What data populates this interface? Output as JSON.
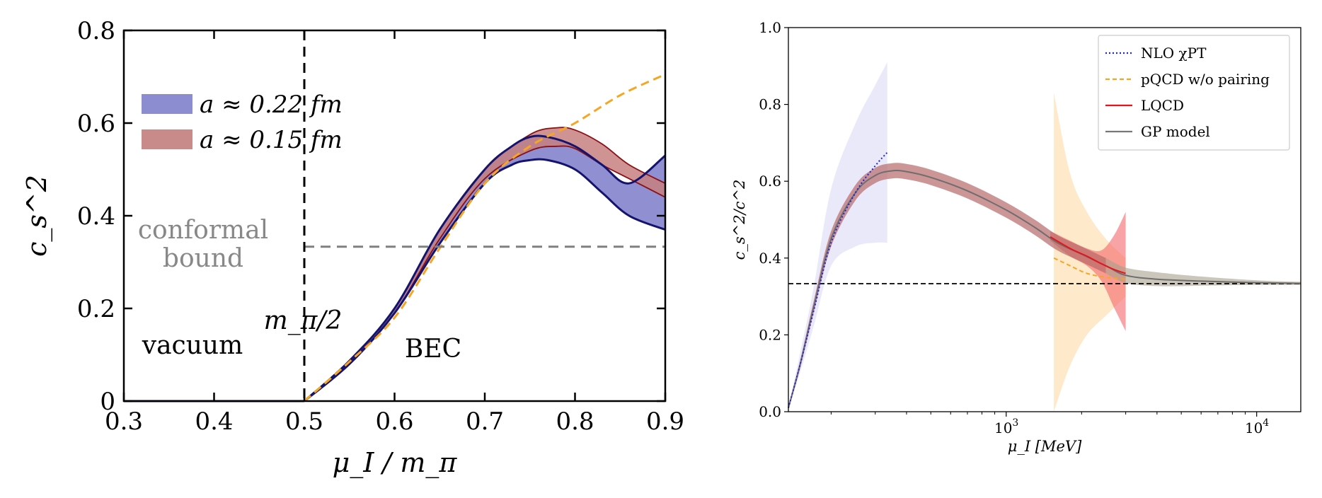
{
  "chart_data": [
    {
      "type": "line",
      "title": "",
      "xlabel": "μ_I / m_π",
      "ylabel": "c_s^2",
      "xlim": [
        0.3,
        0.9
      ],
      "ylim": [
        0,
        0.8
      ],
      "xticks": [
        0.3,
        0.4,
        0.5,
        0.6,
        0.7,
        0.8,
        0.9
      ],
      "yticks": [
        0,
        0.2,
        0.4,
        0.6,
        0.8
      ],
      "xtick_labels": [
        "0.3",
        "0.4",
        "0.5",
        "0.6",
        "0.7",
        "0.8",
        "0.9"
      ],
      "ytick_labels": [
        "0",
        "0.2",
        "0.4",
        "0.6",
        "0.8"
      ],
      "legend": [
        {
          "label": "a ≈ 0.22 fm",
          "color": "#8c8cd0"
        },
        {
          "label": "a ≈ 0.15 fm",
          "color": "#c98a8a"
        }
      ],
      "annotations": {
        "vacuum": "vacuum",
        "bec": "BEC",
        "mpi_half": "m_π/2",
        "conformal_line1": "conformal",
        "conformal_line2": "bound"
      },
      "conformal_bound": 0.3333,
      "vline_x": 0.5,
      "series": [
        {
          "name": "vacuum",
          "color": "#1a1a6e",
          "x": [
            0.3,
            0.5
          ],
          "y": [
            0,
            0
          ]
        },
        {
          "name": "pQCD (dashed orange)",
          "color": "#f5a623",
          "x": [
            0.5,
            0.55,
            0.6,
            0.65,
            0.7,
            0.75,
            0.8,
            0.85,
            0.9
          ],
          "y": [
            0.0,
            0.085,
            0.18,
            0.33,
            0.47,
            0.55,
            0.6,
            0.66,
            0.705
          ]
        },
        {
          "name": "a ≈ 0.22 fm band",
          "x": [
            0.5,
            0.55,
            0.6,
            0.65,
            0.7,
            0.73,
            0.75,
            0.77,
            0.8,
            0.83,
            0.86,
            0.9
          ],
          "upper": [
            0.0,
            0.087,
            0.2,
            0.37,
            0.5,
            0.55,
            0.57,
            0.57,
            0.55,
            0.51,
            0.47,
            0.53
          ],
          "lower": [
            0.0,
            0.08,
            0.19,
            0.34,
            0.47,
            0.51,
            0.52,
            0.52,
            0.5,
            0.45,
            0.4,
            0.37
          ]
        },
        {
          "name": "a ≈ 0.15 fm band",
          "x": [
            0.5,
            0.55,
            0.6,
            0.65,
            0.7,
            0.75,
            0.78,
            0.8,
            0.83,
            0.86,
            0.9
          ],
          "upper": [
            0.0,
            0.088,
            0.2,
            0.37,
            0.5,
            0.575,
            0.59,
            0.585,
            0.555,
            0.51,
            0.47
          ],
          "lower": [
            0.0,
            0.083,
            0.19,
            0.35,
            0.48,
            0.54,
            0.55,
            0.545,
            0.51,
            0.48,
            0.44
          ]
        }
      ]
    },
    {
      "type": "line",
      "title": "",
      "xlabel": "μ_I [MeV]",
      "ylabel": "c_s^2/c^2",
      "xscale": "log",
      "xlim": [
        135,
        15000
      ],
      "ylim": [
        0.0,
        1.0
      ],
      "xticks": [
        1000,
        10000
      ],
      "xtick_labels": [
        "10",
        "10"
      ],
      "xtick_exponents": [
        "3",
        "4"
      ],
      "yticks": [
        0.0,
        0.2,
        0.4,
        0.6,
        0.8,
        1.0
      ],
      "ytick_labels": [
        "0.0",
        "0.2",
        "0.4",
        "0.6",
        "0.8",
        "1.0"
      ],
      "legend_position": "top-right",
      "legend": [
        {
          "label": "NLO χPT",
          "color": "#1f24d6",
          "style": "dotted"
        },
        {
          "label": "pQCD w/o pairing",
          "color": "#f5a623",
          "style": "dashed"
        },
        {
          "label": "LQCD",
          "color": "#e8141a",
          "style": "solid"
        },
        {
          "label": "GP model",
          "color": "#777777",
          "style": "solid"
        }
      ],
      "conformal_bound": 0.3333,
      "series": [
        {
          "name": "GP model",
          "x": [
            135,
            150,
            170,
            200,
            250,
            300,
            350,
            400,
            500,
            700,
            1000,
            1300,
            1600,
            2000,
            2500,
            3000,
            4000,
            6000,
            10000,
            15000
          ],
          "y": [
            0.01,
            0.12,
            0.27,
            0.45,
            0.57,
            0.615,
            0.627,
            0.625,
            0.61,
            0.575,
            0.525,
            0.48,
            0.44,
            0.41,
            0.38,
            0.355,
            0.345,
            0.34,
            0.336,
            0.334
          ],
          "band": [
            0.005,
            0.01,
            0.015,
            0.02,
            0.02,
            0.02,
            0.02,
            0.02,
            0.02,
            0.02,
            0.02,
            0.02,
            0.02,
            0.02,
            0.02,
            0.02,
            0.018,
            0.012,
            0.006,
            0.004
          ]
        },
        {
          "name": "NLO χPT",
          "x": [
            135,
            150,
            170,
            200,
            250,
            300,
            335
          ],
          "y": [
            0.01,
            0.12,
            0.26,
            0.44,
            0.57,
            0.64,
            0.675
          ],
          "band_upper": [
            0.01,
            0.15,
            0.32,
            0.58,
            0.75,
            0.85,
            0.91
          ],
          "band_lower": [
            0.01,
            0.1,
            0.22,
            0.38,
            0.43,
            0.44,
            0.44
          ]
        },
        {
          "name": "pQCD w/o pairing",
          "x": [
            1550,
            1800,
            2100,
            2500,
            3000
          ],
          "y": [
            0.4,
            0.38,
            0.36,
            0.35,
            0.345
          ],
          "band_upper": [
            0.83,
            0.62,
            0.52,
            0.45,
            0.4
          ],
          "band_lower": [
            0.0,
            0.12,
            0.2,
            0.25,
            0.3
          ]
        },
        {
          "name": "LQCD",
          "x": [
            1500,
            1800,
            2100,
            2400,
            2700,
            3000
          ],
          "y": [
            0.455,
            0.425,
            0.405,
            0.385,
            0.37,
            0.36
          ],
          "band_upper": [
            0.47,
            0.445,
            0.425,
            0.42,
            0.46,
            0.52
          ],
          "band_lower": [
            0.445,
            0.405,
            0.38,
            0.34,
            0.27,
            0.21
          ]
        }
      ]
    }
  ]
}
